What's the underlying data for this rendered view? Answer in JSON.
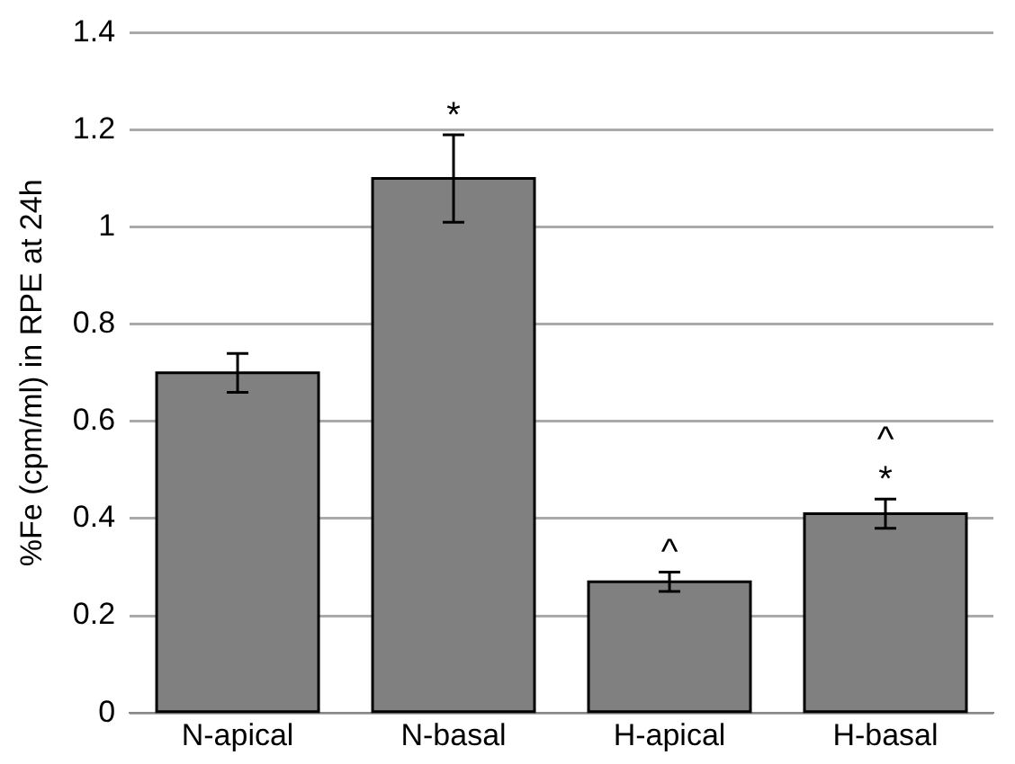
{
  "chart_data": {
    "type": "bar",
    "ylabel": "%Fe (cpm/ml) in RPE at 24h",
    "categories": [
      "N-apical",
      "N-basal",
      "H-apical",
      "H-basal"
    ],
    "values": [
      0.7,
      1.1,
      0.27,
      0.41
    ],
    "errors": [
      0.04,
      0.09,
      0.02,
      0.03
    ],
    "color": "#808080",
    "ylim": [
      0,
      1.4
    ],
    "yticks": [
      0,
      0.2,
      0.4,
      0.6,
      0.8,
      1,
      1.2,
      1.4
    ],
    "grid": "y",
    "value_labels": [
      null,
      "*",
      "^",
      "^\n*"
    ]
  }
}
